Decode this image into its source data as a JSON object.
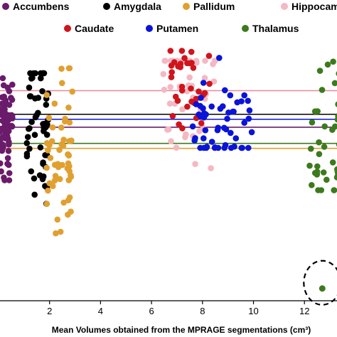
{
  "chart_data": {
    "type": "scatter",
    "xlabel": "Mean Volumes obtained from the MPRAGE segmentations (cm³)",
    "x_ticks": [
      2,
      4,
      6,
      8,
      10,
      12
    ],
    "xlim": [
      0,
      13.5
    ],
    "ylim": [
      0,
      1
    ],
    "grid": false,
    "legend_placement": "top",
    "series": [
      {
        "name": "Accumbens",
        "color": "#6a1b6a",
        "x_range": [
          0.05,
          0.55
        ],
        "y_range": [
          0.47,
          0.88
        ],
        "count": 70,
        "ref_line": 0.683
      },
      {
        "name": "Amygdala",
        "color": "#000000",
        "x_range": [
          1.1,
          1.95
        ],
        "y_range": [
          0.24,
          0.9
        ],
        "count": 55,
        "ref_line": 0.735
      },
      {
        "name": "Pallidum",
        "color": "#e0a030",
        "x_range": [
          1.85,
          2.9
        ],
        "y_range": [
          0.24,
          0.92
        ],
        "count": 55,
        "ref_line": 0.598
      },
      {
        "name": "Hippocampus",
        "color": "#f4b8c4",
        "x_range": [
          6.4,
          8.5
        ],
        "y_range": [
          0.5,
          0.95
        ],
        "count": 45,
        "ref_line": 0.83
      },
      {
        "name": "Caudate",
        "color": "#d0141c",
        "x_range": [
          6.7,
          8.3
        ],
        "y_range": [
          0.6,
          0.99
        ],
        "count": 35,
        "ref_line": 0.83
      },
      {
        "name": "Putamen",
        "color": "#0a14d8",
        "x_range": [
          7.6,
          10.0
        ],
        "y_range": [
          0.6,
          0.97
        ],
        "count": 55,
        "ref_line": 0.715
      },
      {
        "name": "Thalamus",
        "color": "#3d7a1e",
        "x_range": [
          12.2,
          13.6
        ],
        "y_range": [
          0.43,
          0.95
        ],
        "count": 40,
        "ref_line": 0.618
      }
    ],
    "outlier": {
      "series": "Thalamus",
      "x": 12.7,
      "y": 0.035
    }
  }
}
